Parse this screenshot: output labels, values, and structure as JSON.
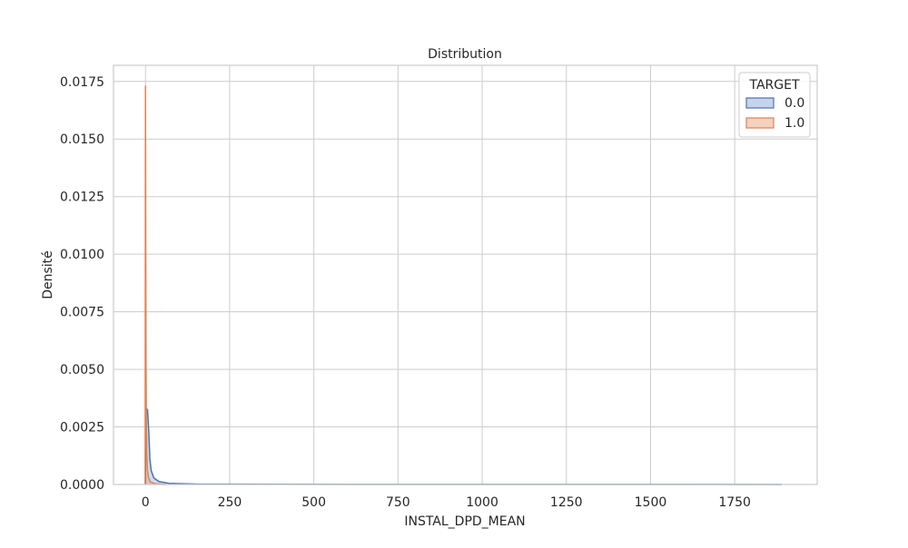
{
  "chart_data": {
    "type": "area",
    "title": "Distribution",
    "xlabel": "INSTAL_DPD_MEAN",
    "ylabel": "Densité",
    "xlim": [
      -95,
      1995
    ],
    "ylim": [
      0,
      0.0182
    ],
    "x_ticks": [
      0,
      250,
      500,
      750,
      1000,
      1250,
      1500,
      1750
    ],
    "x_tick_labels": [
      "0",
      "250",
      "500",
      "750",
      "1000",
      "1250",
      "1500",
      "1750"
    ],
    "y_ticks": [
      0,
      0.0025,
      0.005,
      0.0075,
      0.01,
      0.0125,
      0.015,
      0.0175
    ],
    "y_tick_labels": [
      "0.0000",
      "0.0025",
      "0.0050",
      "0.0075",
      "0.0100",
      "0.0125",
      "0.0150",
      "0.0175"
    ],
    "grid": true,
    "legend": {
      "title": "TARGET",
      "placement": "top-right"
    },
    "series": [
      {
        "name": "0.0",
        "color": "#4c72b0",
        "fill": "#c7d3ea",
        "points": [
          [
            0,
            0
          ],
          [
            0.5,
            0.0032
          ],
          [
            2,
            0.0033
          ],
          [
            6,
            0.00325
          ],
          [
            10,
            0.00225
          ],
          [
            13,
            0.0011
          ],
          [
            17,
            0.0006
          ],
          [
            25,
            0.00028
          ],
          [
            40,
            0.00013
          ],
          [
            70,
            5e-05
          ],
          [
            150,
            2e-05
          ],
          [
            400,
            8e-06
          ],
          [
            900,
            4e-06
          ],
          [
            1500,
            3e-06
          ],
          [
            1880,
            2e-06
          ],
          [
            1890,
            0
          ]
        ]
      },
      {
        "name": "1.0",
        "color": "#dd8452",
        "fill": "#f5d2bf",
        "points": [
          [
            -1,
            0
          ],
          [
            0,
            0.0173
          ],
          [
            0.8,
            0.0108
          ],
          [
            1.5,
            0.0055
          ],
          [
            2.5,
            0.0028
          ],
          [
            4,
            0.0013
          ],
          [
            6,
            0.0006
          ],
          [
            9,
            0.0003
          ],
          [
            15,
            0.0001
          ],
          [
            30,
            3e-05
          ],
          [
            60,
            0
          ]
        ]
      }
    ]
  }
}
